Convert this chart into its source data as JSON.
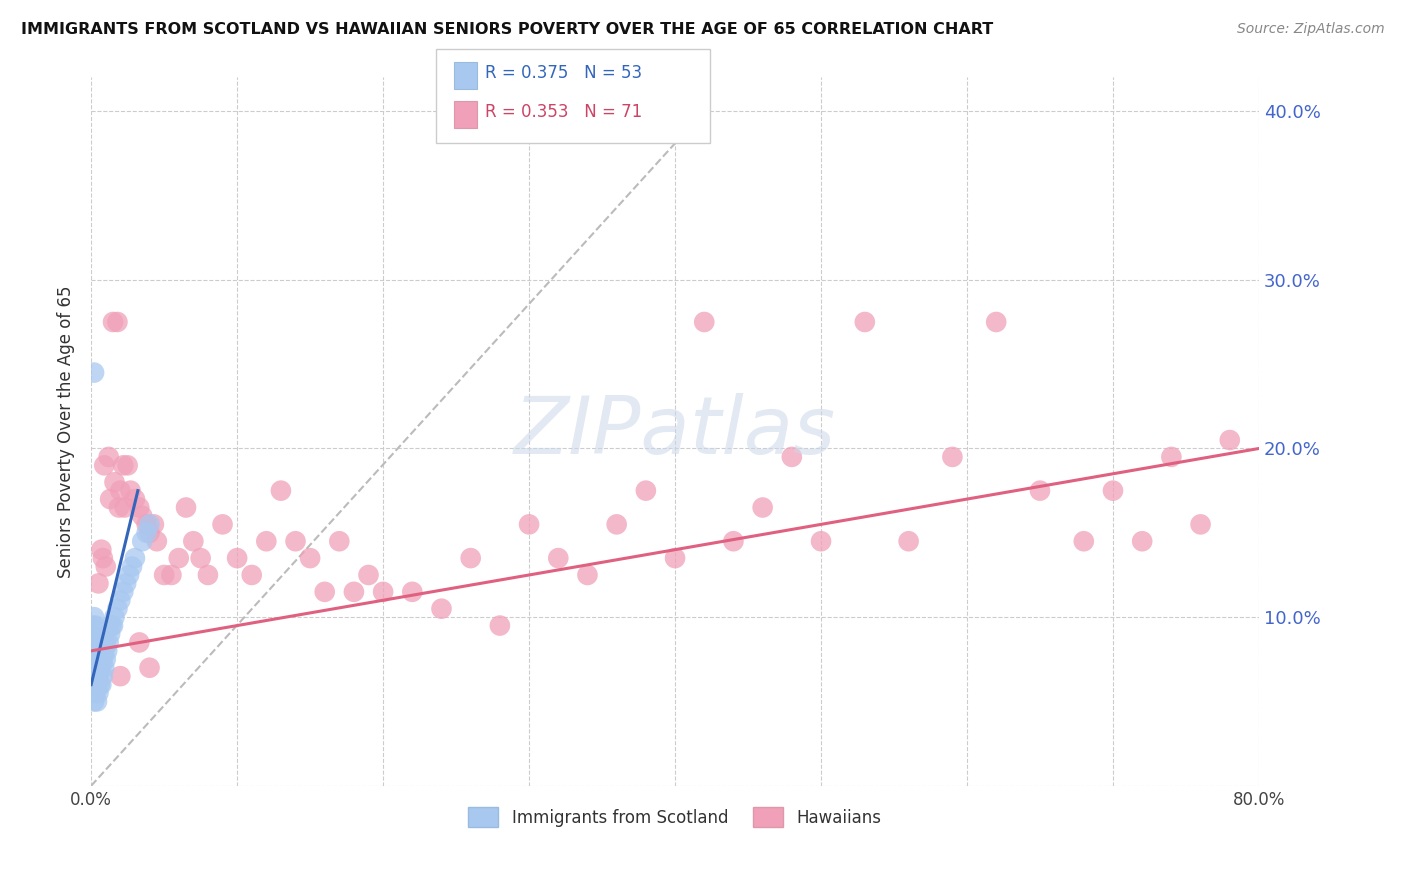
{
  "title": "IMMIGRANTS FROM SCOTLAND VS HAWAIIAN SENIORS POVERTY OVER THE AGE OF 65 CORRELATION CHART",
  "source": "Source: ZipAtlas.com",
  "ylabel": "Seniors Poverty Over the Age of 65",
  "xlim": [
    0.0,
    0.8
  ],
  "ylim": [
    0.0,
    0.42
  ],
  "legend_r1": "R = 0.375",
  "legend_n1": "N = 53",
  "legend_r2": "R = 0.353",
  "legend_n2": "N = 71",
  "color_scotland": "#a8c8f0",
  "color_hawaii": "#f0a0b8",
  "color_scotland_line": "#3366bb",
  "color_hawaii_line": "#e06080",
  "watermark_color": "#ccd8e8",
  "grid_color": "#cccccc",
  "right_axis_color": "#4466cc",
  "scotland_x": [
    0.001,
    0.001,
    0.001,
    0.001,
    0.001,
    0.002,
    0.002,
    0.002,
    0.002,
    0.002,
    0.002,
    0.003,
    0.003,
    0.003,
    0.003,
    0.003,
    0.004,
    0.004,
    0.004,
    0.004,
    0.005,
    0.005,
    0.005,
    0.005,
    0.006,
    0.006,
    0.006,
    0.007,
    0.007,
    0.007,
    0.008,
    0.008,
    0.009,
    0.009,
    0.01,
    0.01,
    0.011,
    0.012,
    0.013,
    0.014,
    0.015,
    0.016,
    0.018,
    0.02,
    0.022,
    0.024,
    0.026,
    0.028,
    0.03,
    0.035,
    0.038,
    0.04,
    0.002
  ],
  "scotland_y": [
    0.055,
    0.065,
    0.075,
    0.085,
    0.095,
    0.05,
    0.06,
    0.07,
    0.08,
    0.09,
    0.1,
    0.055,
    0.065,
    0.075,
    0.085,
    0.095,
    0.05,
    0.06,
    0.07,
    0.08,
    0.055,
    0.065,
    0.075,
    0.085,
    0.06,
    0.07,
    0.08,
    0.06,
    0.07,
    0.08,
    0.065,
    0.075,
    0.07,
    0.08,
    0.075,
    0.085,
    0.08,
    0.085,
    0.09,
    0.095,
    0.095,
    0.1,
    0.105,
    0.11,
    0.115,
    0.12,
    0.125,
    0.13,
    0.135,
    0.145,
    0.15,
    0.155,
    0.245
  ],
  "hawaii_x": [
    0.005,
    0.007,
    0.008,
    0.009,
    0.01,
    0.012,
    0.013,
    0.015,
    0.016,
    0.018,
    0.019,
    0.02,
    0.022,
    0.023,
    0.025,
    0.027,
    0.03,
    0.033,
    0.035,
    0.038,
    0.04,
    0.043,
    0.045,
    0.05,
    0.055,
    0.06,
    0.065,
    0.07,
    0.075,
    0.08,
    0.09,
    0.1,
    0.11,
    0.12,
    0.13,
    0.14,
    0.15,
    0.16,
    0.17,
    0.18,
    0.19,
    0.2,
    0.22,
    0.24,
    0.26,
    0.28,
    0.3,
    0.32,
    0.34,
    0.36,
    0.38,
    0.4,
    0.42,
    0.44,
    0.46,
    0.48,
    0.5,
    0.53,
    0.56,
    0.59,
    0.62,
    0.65,
    0.68,
    0.7,
    0.72,
    0.74,
    0.76,
    0.78,
    0.02,
    0.04,
    0.033
  ],
  "hawaii_y": [
    0.12,
    0.14,
    0.135,
    0.19,
    0.13,
    0.195,
    0.17,
    0.275,
    0.18,
    0.275,
    0.165,
    0.175,
    0.19,
    0.165,
    0.19,
    0.175,
    0.17,
    0.165,
    0.16,
    0.155,
    0.15,
    0.155,
    0.145,
    0.125,
    0.125,
    0.135,
    0.165,
    0.145,
    0.135,
    0.125,
    0.155,
    0.135,
    0.125,
    0.145,
    0.175,
    0.145,
    0.135,
    0.115,
    0.145,
    0.115,
    0.125,
    0.115,
    0.115,
    0.105,
    0.135,
    0.095,
    0.155,
    0.135,
    0.125,
    0.155,
    0.175,
    0.135,
    0.275,
    0.145,
    0.165,
    0.195,
    0.145,
    0.275,
    0.145,
    0.195,
    0.275,
    0.175,
    0.145,
    0.175,
    0.145,
    0.195,
    0.155,
    0.205,
    0.065,
    0.07,
    0.085
  ],
  "scot_line_x": [
    0.0,
    0.032
  ],
  "scot_line_y": [
    0.06,
    0.175
  ],
  "hawaii_line_x": [
    0.0,
    0.8
  ],
  "hawaii_line_y": [
    0.08,
    0.2
  ],
  "ref_line_x": [
    0.0,
    0.42
  ],
  "ref_line_y": [
    0.0,
    0.4
  ]
}
